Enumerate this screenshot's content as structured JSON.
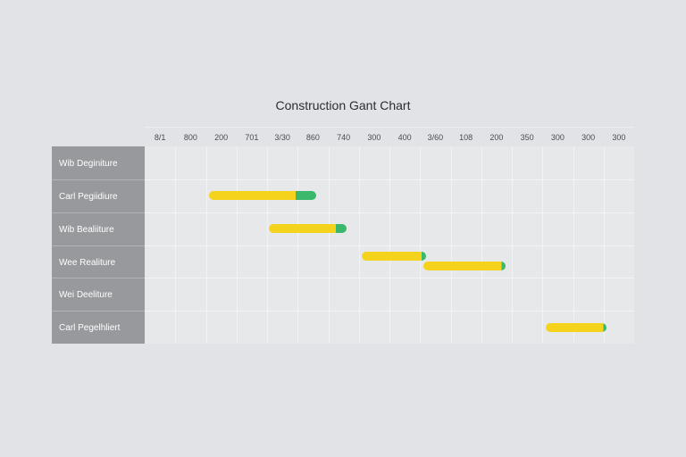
{
  "chart_data": {
    "type": "gantt",
    "title": "Construction Gant Chart",
    "timeline_labels": [
      "8/1",
      "800",
      "200",
      "701",
      "3/30",
      "860",
      "740",
      "300",
      "400",
      "3/60",
      "108",
      "200",
      "350",
      "300",
      "300",
      "300"
    ],
    "rows": [
      {
        "label": "Wib Deginiture"
      },
      {
        "label": "Carl Pegiidiure"
      },
      {
        "label": "Wib Bealiiture"
      },
      {
        "label": "Wee Realiture"
      },
      {
        "label": "Wei Deeliture"
      },
      {
        "label": "Carl Pegelhliert"
      }
    ],
    "tasks": [
      {
        "row": 1,
        "start": 2.1,
        "end": 5.6,
        "progress": 0.81
      },
      {
        "row": 2,
        "start": 4.05,
        "end": 6.6,
        "progress": 0.86
      },
      {
        "row": 3,
        "start": 7.1,
        "end": 9.2,
        "progress": 0.93
      },
      {
        "row": 3,
        "start": 9.1,
        "end": 11.8,
        "progress": 0.95
      },
      {
        "row": 5,
        "start": 13.1,
        "end": 15.1,
        "progress": 0.95
      }
    ],
    "legend": "none",
    "grid": true,
    "colors": {
      "planned": "#f5d21c",
      "completed": "#3ab86b",
      "label_bg": "#98999c"
    }
  }
}
